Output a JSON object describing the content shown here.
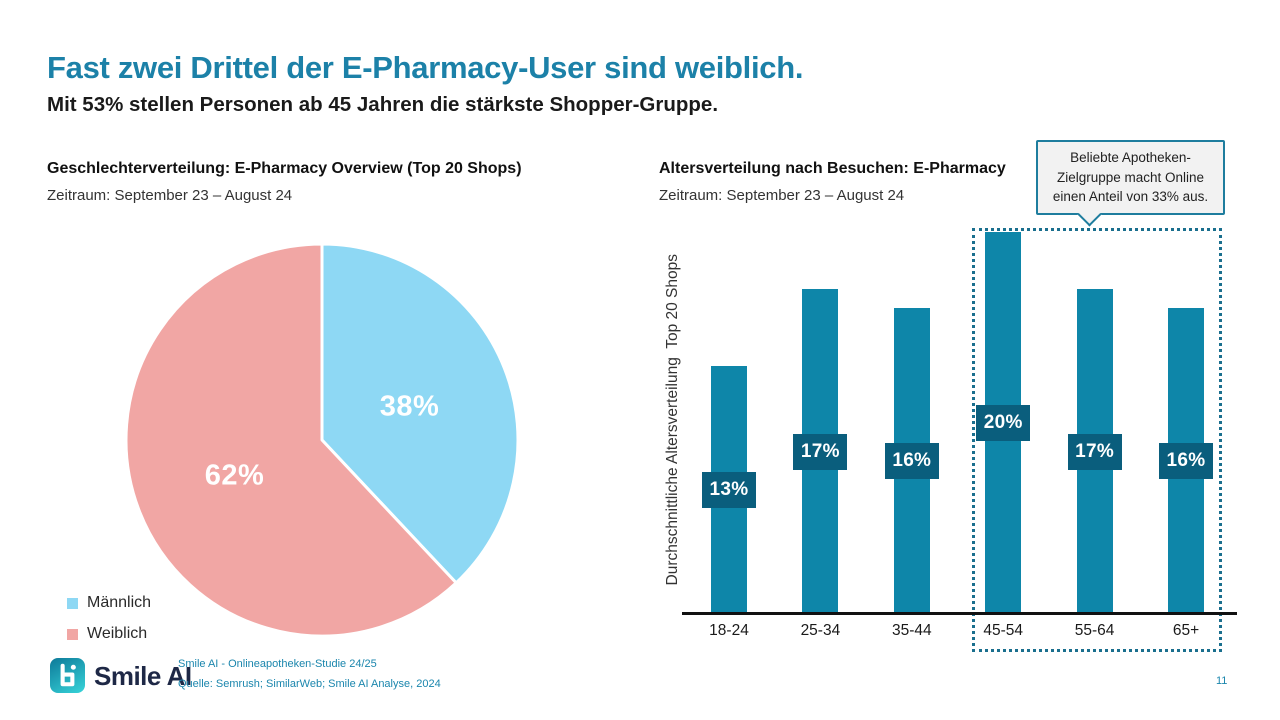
{
  "slide": {
    "title": "Fast zwei Drittel der E-Pharmacy-User sind weiblich.",
    "subtitle": "Mit 53% stellen Personen ab 45 Jahren die stärkste Shopper-Gruppe.",
    "page_number": "11"
  },
  "chart_data": [
    {
      "type": "pie",
      "title": "Geschlechterverteilung: E-Pharmacy Overview (Top 20 Shops)",
      "subtitle": "Zeitraum: September 23 – August 24",
      "labels": [
        "Männlich",
        "Weiblich"
      ],
      "values": [
        38,
        62
      ],
      "data_labels": [
        "38%",
        "62%"
      ],
      "colors": [
        "#8ED8F4",
        "#F1A6A4"
      ],
      "start_angle_deg": 0,
      "direction": "clockwise",
      "legend_position": "bottom-left"
    },
    {
      "type": "bar",
      "title": "Altersverteilung nach Besuchen: E-Pharmacy",
      "subtitle": "Zeitraum: September 23 – August 24",
      "ylabel": "Durchschnittliche Altersverteilung  Top 20 Shops",
      "xlabel": "",
      "categories": [
        "18-24",
        "25-34",
        "35-44",
        "45-54",
        "55-64",
        "65+"
      ],
      "values": [
        13,
        17,
        16,
        20,
        17,
        16
      ],
      "data_labels": [
        "13%",
        "17%",
        "16%",
        "20%",
        "17%",
        "16%"
      ],
      "unit": "%",
      "ylim": [
        0,
        21
      ],
      "grid": false,
      "y_axis_ticks": "hidden",
      "bar_color": "#0E86A9",
      "value_label_bg": "#0A5E7D",
      "highlight": {
        "categories": [
          "45-54",
          "55-64",
          "65+"
        ],
        "border_style": "dotted",
        "border_color": "#1A6F8E",
        "callout_text": "Beliebte Apotheken-\nZielgruppe macht Online\neinen Anteil von 33% aus."
      }
    }
  ],
  "footer": {
    "brand": "Smile AI",
    "logo": "smile-ai-logo",
    "study": "Smile AI - Onlineapotheken-Studie 24/25",
    "source": "Quelle: Semrush; SimilarWeb; Smile AI Analyse, 2024"
  },
  "colors": {
    "accent": "#1C81A8",
    "text_dark": "#1A1A1A",
    "brand_navy": "#1E2846",
    "axis": "#111111"
  }
}
